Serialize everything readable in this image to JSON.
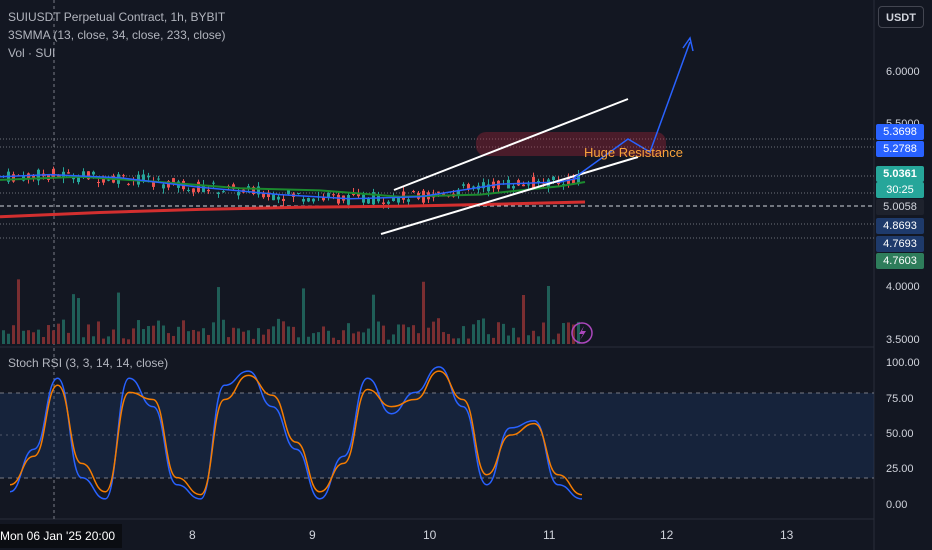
{
  "legend": {
    "title": "SUIUSDT Perpetual Contract, 1h, BYBIT",
    "indicator": "3SMMA (13, close, 34, close, 233, close)",
    "volume": "Vol · SUI",
    "stoch": "Stoch RSI (3, 3, 14, 14, close)"
  },
  "currency_button": "USDT",
  "annotation": "Huge Resistance",
  "price_axis": {
    "ticks": [
      "6.0000",
      "5.5000",
      "4.0000",
      "3.5000"
    ],
    "tags": [
      {
        "label": "5.3698",
        "bg": "#2962ff",
        "fg": "#ffffff"
      },
      {
        "label": "5.2788",
        "bg": "#2962ff",
        "fg": "#ffffff"
      },
      {
        "label": "5.0361",
        "bg": "#26a69a",
        "fg": "#ffffff"
      },
      {
        "label": "30:25",
        "bg": "#26a69a",
        "fg": "#ffffff"
      },
      {
        "label": "5.0058",
        "bg": "#1e222d",
        "fg": "#d1d4dc"
      },
      {
        "label": "4.8693",
        "bg": "#1e3a6b",
        "fg": "#ffffff"
      },
      {
        "label": "4.7693",
        "bg": "#1e3a6b",
        "fg": "#ffffff"
      },
      {
        "label": "4.7603",
        "bg": "#2e7d5b",
        "fg": "#ffffff"
      }
    ]
  },
  "stoch_axis": {
    "ticks": [
      "100.00",
      "75.00",
      "50.00",
      "25.00",
      "0.00"
    ]
  },
  "time_axis": {
    "current": "Mon 06 Jan '25   20:00",
    "labels": [
      "8",
      "9",
      "10",
      "11",
      "12",
      "13"
    ]
  },
  "colors": {
    "background": "#131722",
    "up": "#26a69a",
    "down": "#ef5350",
    "ma_fast": "#2962ff",
    "ma_mid": "#1b8a2e",
    "ma_slow": "#d32f2f",
    "stoch_k": "#2962ff",
    "stoch_d": "#f57c00",
    "annotation": "#f7a23b",
    "channel": "#ffffff"
  },
  "chart_data": [
    {
      "type": "line",
      "title": "SUIUSDT Perpetual Contract, 1h, BYBIT",
      "ylim": [
        3.5,
        6.3
      ],
      "series": [
        {
          "name": "3SMMA 13",
          "x": [
            0,
            50,
            120,
            200,
            280,
            350,
            420,
            500,
            560,
            580
          ],
          "values": [
            5.05,
            5.07,
            5.04,
            4.95,
            4.88,
            4.84,
            4.86,
            4.98,
            5.0,
            5.04
          ]
        },
        {
          "name": "3SMMA 34",
          "x": [
            0,
            80,
            160,
            240,
            320,
            400,
            480,
            560,
            585
          ],
          "values": [
            5.02,
            5.05,
            5.0,
            4.94,
            4.92,
            4.86,
            4.88,
            4.96,
            5.0
          ]
        },
        {
          "name": "3SMMA 233",
          "x": [
            0,
            100,
            200,
            300,
            400,
            500,
            585
          ],
          "values": [
            4.67,
            4.71,
            4.74,
            4.76,
            4.77,
            4.79,
            4.81
          ]
        }
      ]
    },
    {
      "type": "line",
      "title": "Stoch RSI (3, 3, 14, 14, close)",
      "ylim": [
        0,
        100
      ],
      "series": [
        {
          "name": "K",
          "values": [
            10,
            40,
            90,
            20,
            5,
            90,
            70,
            15,
            5,
            85,
            95,
            70,
            40,
            5,
            35,
            90,
            65,
            80,
            98,
            70,
            15,
            55,
            60,
            15,
            5
          ]
        },
        {
          "name": "D",
          "values": [
            15,
            35,
            85,
            30,
            10,
            80,
            75,
            20,
            8,
            75,
            92,
            78,
            45,
            10,
            30,
            82,
            70,
            75,
            95,
            75,
            22,
            50,
            58,
            22,
            8
          ]
        }
      ]
    }
  ]
}
